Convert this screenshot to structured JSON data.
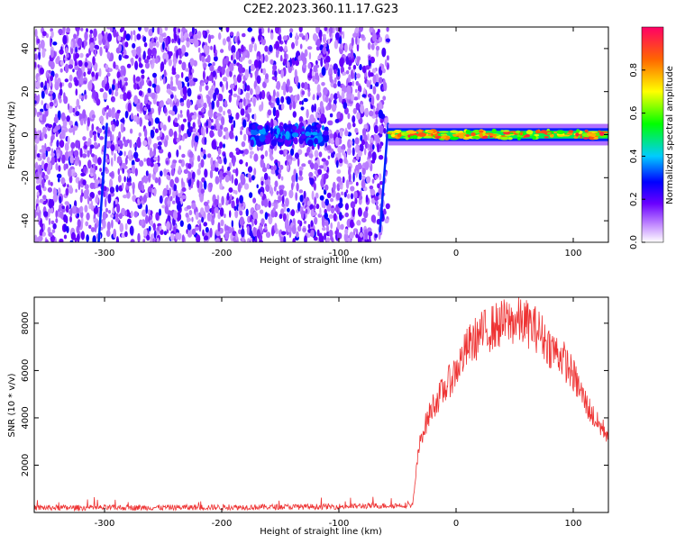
{
  "chart_data": [
    {
      "type": "heatmap",
      "title": "C2E2.2023.360.11.17.G23",
      "xlabel": "Height of straight line (km)",
      "ylabel": "Frequency (Hz)",
      "xlim": [
        -360,
        130
      ],
      "ylim": [
        -50,
        50
      ],
      "xticks": [
        "-300",
        "-200",
        "-100",
        "0",
        "100"
      ],
      "yticks": [
        "40",
        "20",
        "0",
        "-20",
        "-40"
      ],
      "colorbar": {
        "label": "Normalized spectral amplitude",
        "range": [
          0.0,
          1.0
        ],
        "ticks": [
          "0.0",
          "0.2",
          "0.4",
          "0.6",
          "0.8"
        ]
      },
      "regions": [
        {
          "x_range": [
            -360,
            -58
          ],
          "frequency_range": [
            -50,
            50
          ],
          "amplitude": "0.05-0.3 speckle noise"
        },
        {
          "x_range": [
            -175,
            -110
          ],
          "frequency_center": 0,
          "amplitude": "0.2-0.4"
        },
        {
          "x_range": [
            -58,
            130
          ],
          "frequency_center": 0,
          "frequency_halfwidth": 3,
          "amplitude": "0.4-0.95"
        }
      ],
      "streaks": [
        {
          "x_start": -305,
          "f_start": -50,
          "x_end": -298,
          "f_end": 5
        },
        {
          "x_start": -65,
          "f_start": -45,
          "x_end": -58,
          "f_end": 5
        }
      ]
    },
    {
      "type": "line",
      "xlabel": "Height of straight line (km)",
      "ylabel": "SNR (10 * v/v)",
      "xlim": [
        -360,
        130
      ],
      "ylim": [
        0,
        9100
      ],
      "xticks": [
        "-300",
        "-200",
        "-100",
        "0",
        "100"
      ],
      "yticks": [
        "8000",
        "6000",
        "4000",
        "2000"
      ],
      "series": [
        {
          "color": "#ee3333",
          "x": [
            -360,
            -300,
            -200,
            -100,
            -50,
            -37,
            -33,
            -30,
            -20,
            -10,
            0,
            10,
            20,
            30,
            40,
            50,
            60,
            70,
            80,
            90,
            100,
            110,
            120,
            130
          ],
          "y": [
            200,
            200,
            220,
            250,
            300,
            320,
            2200,
            3200,
            4500,
            5200,
            6000,
            7000,
            7500,
            7800,
            8000,
            8100,
            8000,
            7700,
            7000,
            6600,
            5800,
            4700,
            3800,
            3300
          ]
        }
      ]
    }
  ]
}
